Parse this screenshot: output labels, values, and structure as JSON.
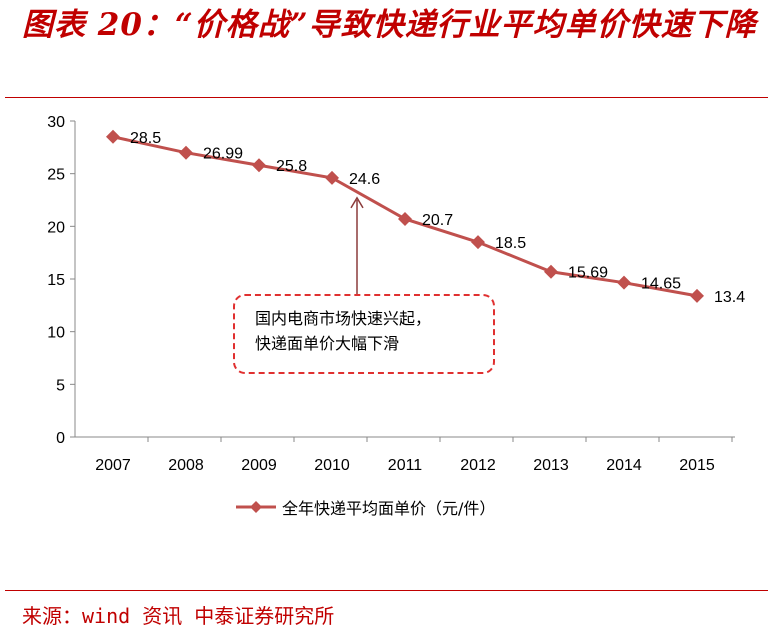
{
  "title": "图表 20：“价格战”导致快递行业平均单价快速下降",
  "source": "来源：wind 资讯 中泰证券研究所",
  "chart_data": {
    "type": "line",
    "categories": [
      "2007",
      "2008",
      "2009",
      "2010",
      "2011",
      "2012",
      "2013",
      "2014",
      "2015"
    ],
    "series": [
      {
        "name": "全年快递平均面单价（元/件）",
        "values": [
          28.5,
          26.99,
          25.8,
          24.6,
          20.7,
          18.5,
          15.69,
          14.65,
          13.4
        ],
        "color": "#c0504d"
      }
    ],
    "data_labels": [
      "28.5",
      "26.99",
      "25.8",
      "24.6",
      "20.7",
      "18.5",
      "15.69",
      "14.65",
      "13.4"
    ],
    "ylim": [
      0,
      30
    ],
    "yticks": [
      "0",
      "5",
      "10",
      "15",
      "20",
      "25",
      "30"
    ],
    "grid": false,
    "legend": "bottom",
    "annotation": {
      "lines": [
        "国内电商市场快速兴起，",
        "快递面单价大幅下滑"
      ],
      "points_to": "2010",
      "color": "#e03030"
    }
  }
}
